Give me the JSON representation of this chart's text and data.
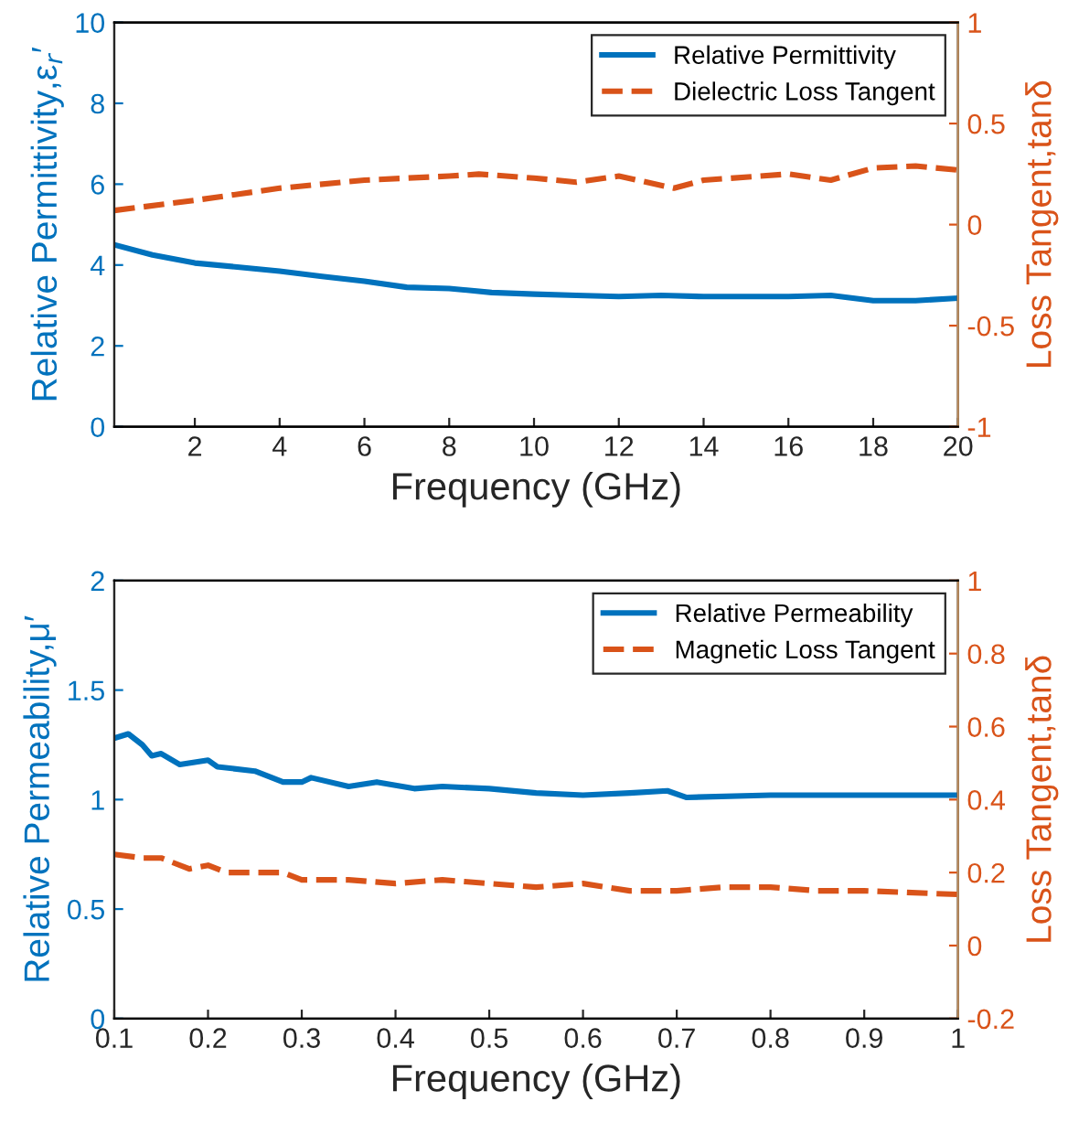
{
  "chart_data": [
    {
      "type": "line",
      "xlabel": "Frequency (GHz)",
      "ylabel": "Relative Permittivity,ε$_{r}$′",
      "y2label": "Loss Tangent,tanδ",
      "legend": "top right",
      "grid": false,
      "line_style": "solid",
      "marker": "none",
      "xlim": [
        0.1,
        20
      ],
      "xticks": [
        2,
        4,
        6,
        8,
        10,
        12,
        14,
        16,
        18,
        20
      ],
      "ylim": [
        0,
        10
      ],
      "yticks": [
        0,
        2,
        4,
        6,
        8,
        10
      ],
      "y2lim": [
        -1,
        1
      ],
      "y2ticks": [
        -1,
        -0.5,
        0,
        0.5,
        1
      ],
      "series": [
        {
          "name": "Relative Permittivity",
          "color": "#0072bd",
          "x": [
            0.1,
            1,
            2,
            3,
            4,
            5,
            6,
            7,
            8,
            9,
            10,
            11,
            12,
            13,
            14,
            15,
            16,
            17,
            18,
            19,
            20
          ],
          "values": [
            4.5,
            4.25,
            4.05,
            3.95,
            3.85,
            3.72,
            3.6,
            3.45,
            3.42,
            3.32,
            3.28,
            3.25,
            3.22,
            3.25,
            3.22,
            3.22,
            3.22,
            3.25,
            3.12,
            3.12,
            3.18
          ]
        },
        {
          "name": "Dielectric Loss Tangent",
          "color": "#d95319",
          "axis": "y2",
          "line_style": "dashed",
          "x": [
            0.1,
            2,
            4,
            6,
            8,
            8.7,
            10,
            11,
            12,
            13.3,
            14,
            16,
            17,
            18,
            19,
            20
          ],
          "values": [
            0.07,
            0.12,
            0.18,
            0.22,
            0.24,
            0.25,
            0.23,
            0.21,
            0.24,
            0.18,
            0.22,
            0.25,
            0.22,
            0.28,
            0.29,
            0.27
          ]
        }
      ]
    },
    {
      "type": "line",
      "xlabel": "Frequency (GHz)",
      "ylabel": "Relative Permeability,μ′",
      "y2label": "Loss Tangent,tanδ",
      "legend": "top right",
      "grid": false,
      "line_style": "solid",
      "marker": "none",
      "xlim": [
        0.1,
        1
      ],
      "xticks": [
        0.1,
        0.2,
        0.3,
        0.4,
        0.5,
        0.6,
        0.7,
        0.8,
        0.9,
        1
      ],
      "ylim": [
        0,
        2
      ],
      "yticks": [
        0,
        0.5,
        1,
        1.5,
        2
      ],
      "y2lim": [
        -0.2,
        1
      ],
      "y2ticks": [
        -0.2,
        0,
        0.2,
        0.4,
        0.6,
        0.8,
        1
      ],
      "series": [
        {
          "name": "Relative Permeability",
          "color": "#0072bd",
          "x": [
            0.1,
            0.115,
            0.13,
            0.14,
            0.15,
            0.17,
            0.2,
            0.21,
            0.25,
            0.28,
            0.3,
            0.31,
            0.35,
            0.38,
            0.42,
            0.45,
            0.5,
            0.55,
            0.6,
            0.65,
            0.69,
            0.71,
            0.8,
            0.9,
            1.0
          ],
          "values": [
            1.28,
            1.3,
            1.25,
            1.2,
            1.21,
            1.16,
            1.18,
            1.15,
            1.13,
            1.08,
            1.08,
            1.1,
            1.06,
            1.08,
            1.05,
            1.06,
            1.05,
            1.03,
            1.02,
            1.03,
            1.04,
            1.01,
            1.02,
            1.02,
            1.02
          ]
        },
        {
          "name": "Magnetic Loss Tangent",
          "color": "#d95319",
          "axis": "y2",
          "line_style": "dashed",
          "x": [
            0.1,
            0.13,
            0.15,
            0.18,
            0.2,
            0.22,
            0.25,
            0.28,
            0.3,
            0.35,
            0.4,
            0.45,
            0.5,
            0.55,
            0.6,
            0.65,
            0.7,
            0.75,
            0.8,
            0.85,
            0.9,
            1.0
          ],
          "values": [
            0.25,
            0.24,
            0.24,
            0.21,
            0.22,
            0.2,
            0.2,
            0.2,
            0.18,
            0.18,
            0.17,
            0.18,
            0.17,
            0.16,
            0.17,
            0.15,
            0.15,
            0.16,
            0.16,
            0.15,
            0.15,
            0.14
          ]
        }
      ]
    }
  ]
}
